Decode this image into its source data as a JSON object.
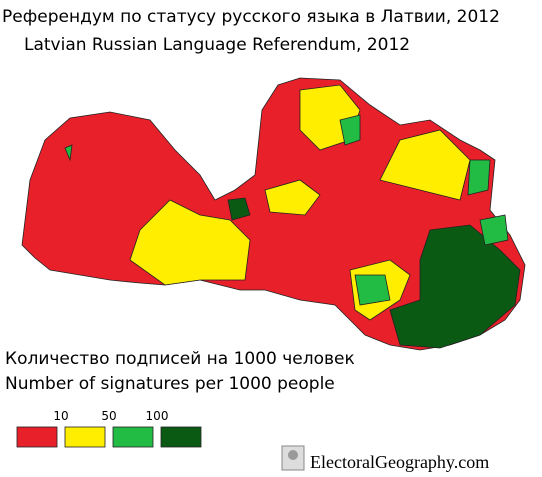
{
  "header": {
    "title_ru": "Референдум по статусу русского языка в Латвии, 2012",
    "title_en": "Latvian Russian Language Referendum, 2012"
  },
  "legend": {
    "title_ru": "Количество подписей на 1000 человек",
    "title_en": "Number of signatures per 1000 people",
    "ticks": [
      10,
      50,
      100
    ],
    "colors": [
      "#e8202a",
      "#ffee00",
      "#22bb44",
      "#0a5a14"
    ]
  },
  "watermark": "ElectoralGeography.com"
}
